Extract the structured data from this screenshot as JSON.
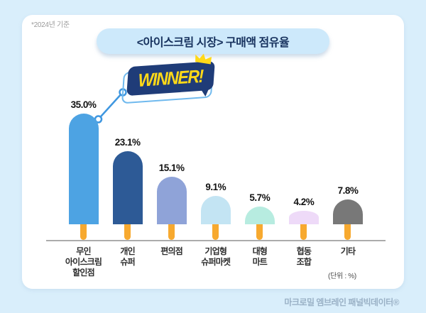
{
  "page": {
    "note": "*2024년 기준",
    "title": "<아이스크림 시장> 구매액 점유율",
    "winner_label": "WINNER!",
    "unit_label": "(단위 : %)",
    "source": "마크로밀 엠브레인 패널빅데이터®"
  },
  "colors": {
    "background": "#D9EEFB",
    "card": "#FFFFFF",
    "title_pill_bg": "#CDE9FB",
    "title_text": "#17325E",
    "badge_navy": "#1F3C78",
    "badge_yellow": "#FFD918",
    "badge_outline": "#6FB9EE",
    "callout_line": "#3F97E0",
    "baseline": "#ACACAC",
    "note_text": "#9B9B9B",
    "source_text": "#9AB1C6"
  },
  "chart_data": {
    "type": "bar",
    "style": "popsicle-pictogram",
    "title": "<아이스크림 시장> 구매액 점유율",
    "note": "*2024년 기준",
    "unit": "%",
    "unit_label": "(단위 : %)",
    "source": "마크로밀 엠브레인 패널빅데이터®",
    "categories": [
      "무인 아이스크림 할인점",
      "개인 슈퍼",
      "편의점",
      "기업형 슈퍼마켓",
      "대형 마트",
      "협동 조합",
      "기타"
    ],
    "category_display": [
      "무인\n아이스크림\n할인점",
      "개인\n슈퍼",
      "편의점",
      "기업형\n슈퍼마켓",
      "대형\n마트",
      "협동\n조합",
      "기타"
    ],
    "values": [
      35.0,
      23.1,
      15.1,
      9.1,
      5.7,
      4.2,
      7.8
    ],
    "value_labels": [
      "35.0%",
      "23.1%",
      "15.1%",
      "9.1%",
      "5.7%",
      "4.2%",
      "7.8%"
    ],
    "bar_colors": [
      "#4DA3E3",
      "#2D5A96",
      "#8FA3D8",
      "#C3E4F3",
      "#B7ECE0",
      "#EEDAF8",
      "#787878"
    ],
    "stick_color": "#F7A92F",
    "ylim": [
      0,
      40
    ],
    "grid": false,
    "legend": false,
    "annotations": {
      "winner": "WINNER!",
      "winner_target": "무인 아이스크림 할인점"
    }
  }
}
